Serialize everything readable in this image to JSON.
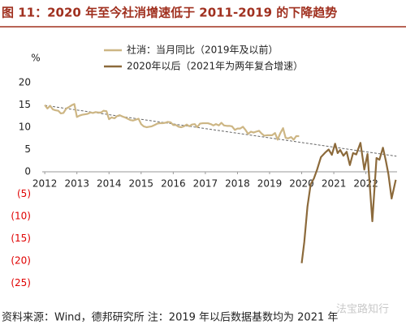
{
  "chart_data": {
    "type": "line",
    "title": "图 11：2020 年至今社消增速低于 2011-2019 的下降趋势",
    "y_label": "%",
    "source": "资料来源：Wind，德邦研究所 注：2019 年以后数据基数均为 2021 年",
    "watermark": "法宝路知行",
    "xlim": [
      2011.92,
      2022.97
    ],
    "xticks": [
      2012,
      2013,
      2014,
      2015,
      2016,
      2017,
      2018,
      2019,
      2020,
      2021,
      2022
    ],
    "ylim": [
      -25,
      20
    ],
    "yticks": [
      20,
      15,
      10,
      5,
      0,
      {
        "value": -5,
        "label": "(5)"
      },
      {
        "value": -10,
        "label": "(10)"
      },
      {
        "value": -15,
        "label": "(15)"
      },
      {
        "value": -20,
        "label": "(20)"
      },
      {
        "value": -25,
        "label": "(25)"
      }
    ],
    "negative_tick_color": "#e00000",
    "series": [
      {
        "name": "社消：当月同比（2019年及以前）",
        "color": "#cdb684",
        "x": [
          2012.0,
          2012.08,
          2012.17,
          2012.25,
          2012.33,
          2012.42,
          2012.5,
          2012.58,
          2012.67,
          2012.75,
          2012.83,
          2012.92,
          2013.0,
          2013.08,
          2013.17,
          2013.25,
          2013.33,
          2013.42,
          2013.5,
          2013.58,
          2013.67,
          2013.75,
          2013.83,
          2013.92,
          2014.0,
          2014.08,
          2014.17,
          2014.25,
          2014.33,
          2014.42,
          2014.5,
          2014.58,
          2014.67,
          2014.75,
          2014.83,
          2014.92,
          2015.0,
          2015.08,
          2015.17,
          2015.25,
          2015.33,
          2015.42,
          2015.5,
          2015.58,
          2015.67,
          2015.75,
          2015.83,
          2015.92,
          2016.0,
          2016.08,
          2016.17,
          2016.25,
          2016.33,
          2016.42,
          2016.5,
          2016.58,
          2016.67,
          2016.75,
          2016.83,
          2016.92,
          2017.0,
          2017.08,
          2017.17,
          2017.25,
          2017.33,
          2017.42,
          2017.5,
          2017.58,
          2017.67,
          2017.75,
          2017.83,
          2017.92,
          2018.0,
          2018.08,
          2018.17,
          2018.25,
          2018.33,
          2018.42,
          2018.5,
          2018.58,
          2018.67,
          2018.75,
          2018.83,
          2018.92,
          2019.0,
          2019.08,
          2019.17,
          2019.25,
          2019.33,
          2019.42,
          2019.5,
          2019.58,
          2019.67,
          2019.75,
          2019.83,
          2019.92
        ],
        "values": [
          15,
          14.2,
          14.8,
          14,
          13.8,
          13.7,
          13.1,
          13.2,
          14.2,
          14.5,
          14.9,
          15.2,
          12.3,
          12.6,
          12.8,
          12.9,
          13,
          13.3,
          13.2,
          13.4,
          13.3,
          13.3,
          13.7,
          13.6,
          11.8,
          12.2,
          12,
          12.5,
          12.7,
          12.4,
          12.2,
          11.9,
          11.6,
          11.5,
          11.7,
          11.9,
          10.7,
          10.2,
          10,
          10.1,
          10.2,
          10.5,
          10.8,
          10.9,
          10.9,
          11,
          11.2,
          11.1,
          10.5,
          10.5,
          10.1,
          10,
          10.2,
          10.6,
          10.2,
          10.6,
          10.7,
          10,
          10.8,
          10.9,
          10.9,
          10.9,
          10.7,
          10.4,
          10.7,
          10.4,
          11,
          10.4,
          10.3,
          10.3,
          10.2,
          9.4,
          9.7,
          9.7,
          10.1,
          9.4,
          8.5,
          9,
          8.8,
          9,
          9.2,
          8.6,
          8.1,
          8.2,
          8.2,
          8.2,
          8.7,
          7.2,
          8.6,
          9.8,
          7.6,
          7.5,
          7.8,
          7.2,
          8,
          8
        ]
      },
      {
        "name": "2020年以后（2021年为两年复合增速）",
        "color": "#8c6a3b",
        "x": [
          2020.0,
          2020.08,
          2020.18,
          2020.28,
          2020.38,
          2020.48,
          2020.6,
          2020.73,
          2020.84,
          2020.94,
          2021.04,
          2021.12,
          2021.2,
          2021.3,
          2021.4,
          2021.5,
          2021.6,
          2021.7,
          2021.83,
          2021.95,
          2022.05,
          2022.2,
          2022.33,
          2022.42,
          2022.53,
          2022.62,
          2022.7,
          2022.8,
          2022.93
        ],
        "values": [
          -20.5,
          -15.8,
          -7.8,
          -2.8,
          -1.5,
          0.5,
          3.3,
          4.3,
          5,
          3.8,
          6.3,
          4.2,
          4.9,
          3.6,
          4.5,
          1.5,
          4.2,
          3.9,
          6.5,
          0.5,
          4,
          -11.1,
          3.1,
          2.7,
          5.4,
          2.5,
          -0.5,
          -6,
          -1.8
        ]
      }
    ],
    "trend": {
      "color": "#666666",
      "x": [
        2012,
        2022.95
      ],
      "values": [
        14.9,
        3.5
      ]
    }
  }
}
